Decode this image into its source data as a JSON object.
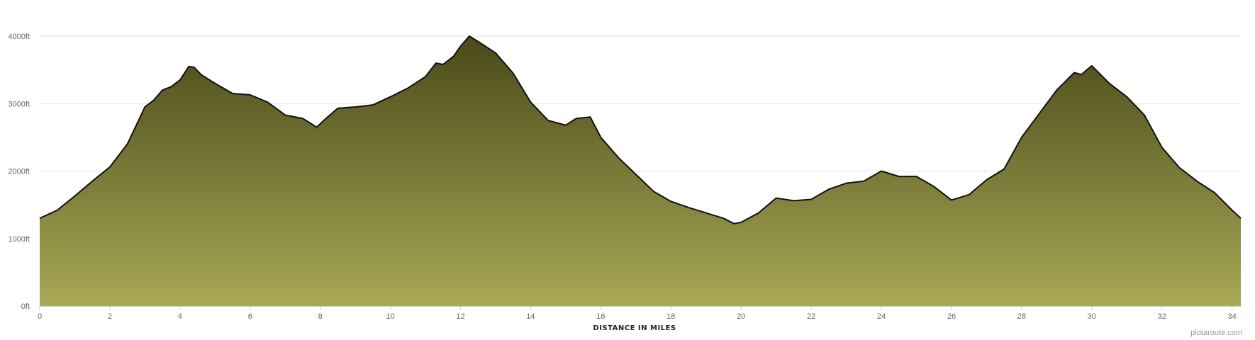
{
  "chart_data": {
    "type": "area",
    "title": "",
    "xlabel": "DISTANCE IN MILES",
    "ylabel": "",
    "xlim": [
      0,
      34.25
    ],
    "ylim": [
      0,
      4000
    ],
    "x_ticks": [
      0,
      2,
      4,
      6,
      8,
      10,
      12,
      14,
      16,
      18,
      20,
      22,
      24,
      26,
      28,
      30,
      32,
      34
    ],
    "x_tick_labels": [
      "0",
      "2",
      "4",
      "6",
      "8",
      "10",
      "12",
      "14",
      "16",
      "18",
      "20",
      "22",
      "24",
      "26",
      "28",
      "30",
      "32",
      "34"
    ],
    "y_ticks": [
      0,
      1000,
      2000,
      3000,
      4000
    ],
    "y_tick_labels": [
      "0ft",
      "1000ft",
      "2000ft",
      "3000ft",
      "4000ft"
    ],
    "grid": true,
    "legend": "none",
    "fill_top_color": "#4a4a1a",
    "fill_bottom_color": "#a8a855",
    "line_color": "#111111",
    "credit": "plotaroute.com",
    "series": [
      {
        "x": [
          0,
          0.5,
          1,
          1.5,
          2,
          2.5,
          3,
          3.25,
          3.5,
          3.75,
          4,
          4.25,
          4.4,
          4.6,
          5,
          5.5,
          6,
          6.5,
          7,
          7.5,
          7.9,
          8.1,
          8.5,
          9,
          9.5,
          10,
          10.5,
          11,
          11.3,
          11.5,
          11.8,
          12,
          12.25,
          12.5,
          13,
          13.5,
          14,
          14.5,
          15,
          15.3,
          15.7,
          16,
          16.5,
          17,
          17.5,
          18,
          18.5,
          19,
          19.5,
          19.8,
          20,
          20.5,
          21,
          21.5,
          22,
          22.5,
          23,
          23.5,
          24,
          24.5,
          25,
          25.5,
          26,
          26.5,
          27,
          27.5,
          28,
          28.5,
          29,
          29.5,
          29.7,
          30,
          30.5,
          31,
          31.5,
          32,
          32.5,
          33,
          33.5,
          34,
          34.25
        ],
        "y": [
          1300,
          1420,
          1630,
          1850,
          2060,
          2400,
          2950,
          3050,
          3200,
          3250,
          3350,
          3550,
          3540,
          3430,
          3300,
          3150,
          3130,
          3020,
          2830,
          2780,
          2650,
          2750,
          2930,
          2950,
          2980,
          3100,
          3230,
          3400,
          3600,
          3580,
          3700,
          3850,
          4000,
          3920,
          3750,
          3450,
          3020,
          2750,
          2680,
          2780,
          2800,
          2500,
          2200,
          1950,
          1700,
          1550,
          1460,
          1380,
          1300,
          1220,
          1240,
          1380,
          1600,
          1560,
          1580,
          1730,
          1820,
          1850,
          2000,
          1920,
          1920,
          1770,
          1570,
          1650,
          1870,
          2030,
          2500,
          2850,
          3200,
          3460,
          3430,
          3560,
          3300,
          3100,
          2830,
          2350,
          2050,
          1850,
          1680,
          1420,
          1300
        ]
      }
    ]
  }
}
